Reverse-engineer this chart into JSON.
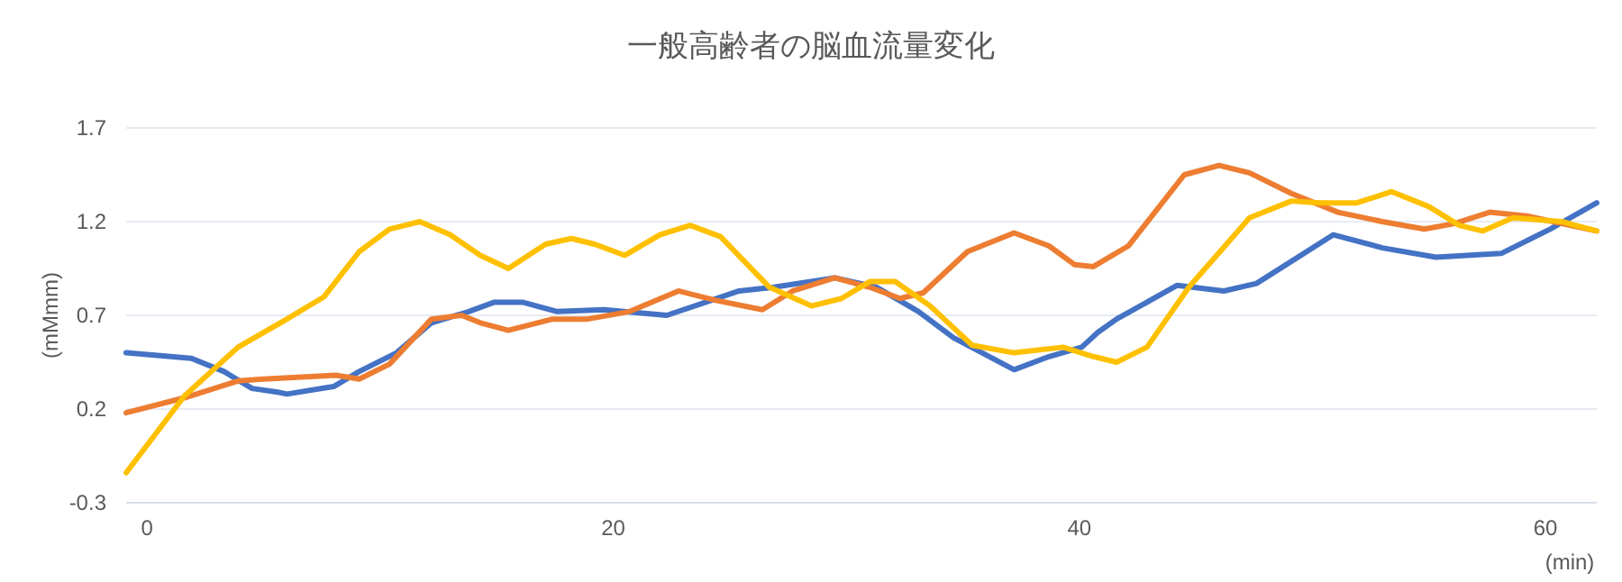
{
  "chart_data": {
    "type": "line",
    "title": "一般高齢者の脳血流量変化",
    "xlabel": "(min)",
    "ylabel": "(mMmm)",
    "xlim": [
      -0.9,
      62.2
    ],
    "ylim": [
      -0.3,
      1.7
    ],
    "xticks": [
      0,
      20,
      40,
      60
    ],
    "yticks": [
      -0.3,
      0.2,
      0.7,
      1.2,
      1.7
    ],
    "grid": "y",
    "series": [
      {
        "color": "#4472c4",
        "x": [
          -0.9,
          1.9,
          3.3,
          4.5,
          5.6,
          6.0,
          8.0,
          9.1,
          10.7,
          12.2,
          13.8,
          14.9,
          16.1,
          17.6,
          19.6,
          22.3,
          25.4,
          26.9,
          29.5,
          31.3,
          33.1,
          34.6,
          37.2,
          38.7,
          40.1,
          40.8,
          41.6,
          44.2,
          46.2,
          47.6,
          50.9,
          53.0,
          55.3,
          58.1,
          60.2,
          62.2
        ],
        "values": [
          0.5,
          0.47,
          0.4,
          0.31,
          0.29,
          0.28,
          0.32,
          0.4,
          0.5,
          0.66,
          0.72,
          0.77,
          0.77,
          0.72,
          0.73,
          0.7,
          0.83,
          0.85,
          0.9,
          0.85,
          0.72,
          0.58,
          0.41,
          0.48,
          0.53,
          0.61,
          0.68,
          0.86,
          0.83,
          0.87,
          1.13,
          1.06,
          1.01,
          1.03,
          1.16,
          1.3
        ]
      },
      {
        "color": "#ed7d31",
        "x": [
          -0.9,
          1.6,
          3.9,
          5.0,
          8.1,
          9.1,
          10.4,
          12.2,
          13.5,
          14.3,
          15.5,
          17.4,
          18.9,
          20.7,
          22.8,
          24.4,
          26.4,
          27.7,
          29.5,
          31.0,
          32.3,
          33.3,
          35.2,
          37.2,
          38.7,
          39.8,
          40.6,
          42.1,
          44.5,
          46.0,
          47.3,
          49.1,
          51.1,
          53.0,
          54.8,
          56.1,
          57.6,
          59.2,
          62.2
        ],
        "values": [
          0.18,
          0.26,
          0.35,
          0.36,
          0.38,
          0.36,
          0.44,
          0.68,
          0.7,
          0.66,
          0.62,
          0.68,
          0.68,
          0.72,
          0.83,
          0.78,
          0.73,
          0.83,
          0.9,
          0.85,
          0.79,
          0.82,
          1.04,
          1.14,
          1.07,
          0.97,
          0.96,
          1.07,
          1.45,
          1.5,
          1.46,
          1.35,
          1.25,
          1.2,
          1.16,
          1.19,
          1.25,
          1.23,
          1.15
        ]
      },
      {
        "color": "#ffc000",
        "x": [
          -0.9,
          1.6,
          3.9,
          6.0,
          7.6,
          9.1,
          10.4,
          11.7,
          13.0,
          14.3,
          15.5,
          17.1,
          18.2,
          19.2,
          20.5,
          22.0,
          23.3,
          24.6,
          26.7,
          28.5,
          29.8,
          31.0,
          32.1,
          33.6,
          35.4,
          37.2,
          39.3,
          40.6,
          41.6,
          42.9,
          44.7,
          47.3,
          49.1,
          50.3,
          51.9,
          53.4,
          55.0,
          56.3,
          57.3,
          58.6,
          60.7,
          62.2
        ],
        "values": [
          -0.14,
          0.27,
          0.53,
          0.68,
          0.8,
          1.04,
          1.16,
          1.2,
          1.13,
          1.02,
          0.95,
          1.08,
          1.11,
          1.08,
          1.02,
          1.13,
          1.18,
          1.12,
          0.85,
          0.75,
          0.79,
          0.88,
          0.88,
          0.75,
          0.54,
          0.5,
          0.53,
          0.48,
          0.45,
          0.53,
          0.85,
          1.22,
          1.31,
          1.3,
          1.3,
          1.36,
          1.28,
          1.18,
          1.15,
          1.22,
          1.2,
          1.15
        ]
      }
    ]
  }
}
